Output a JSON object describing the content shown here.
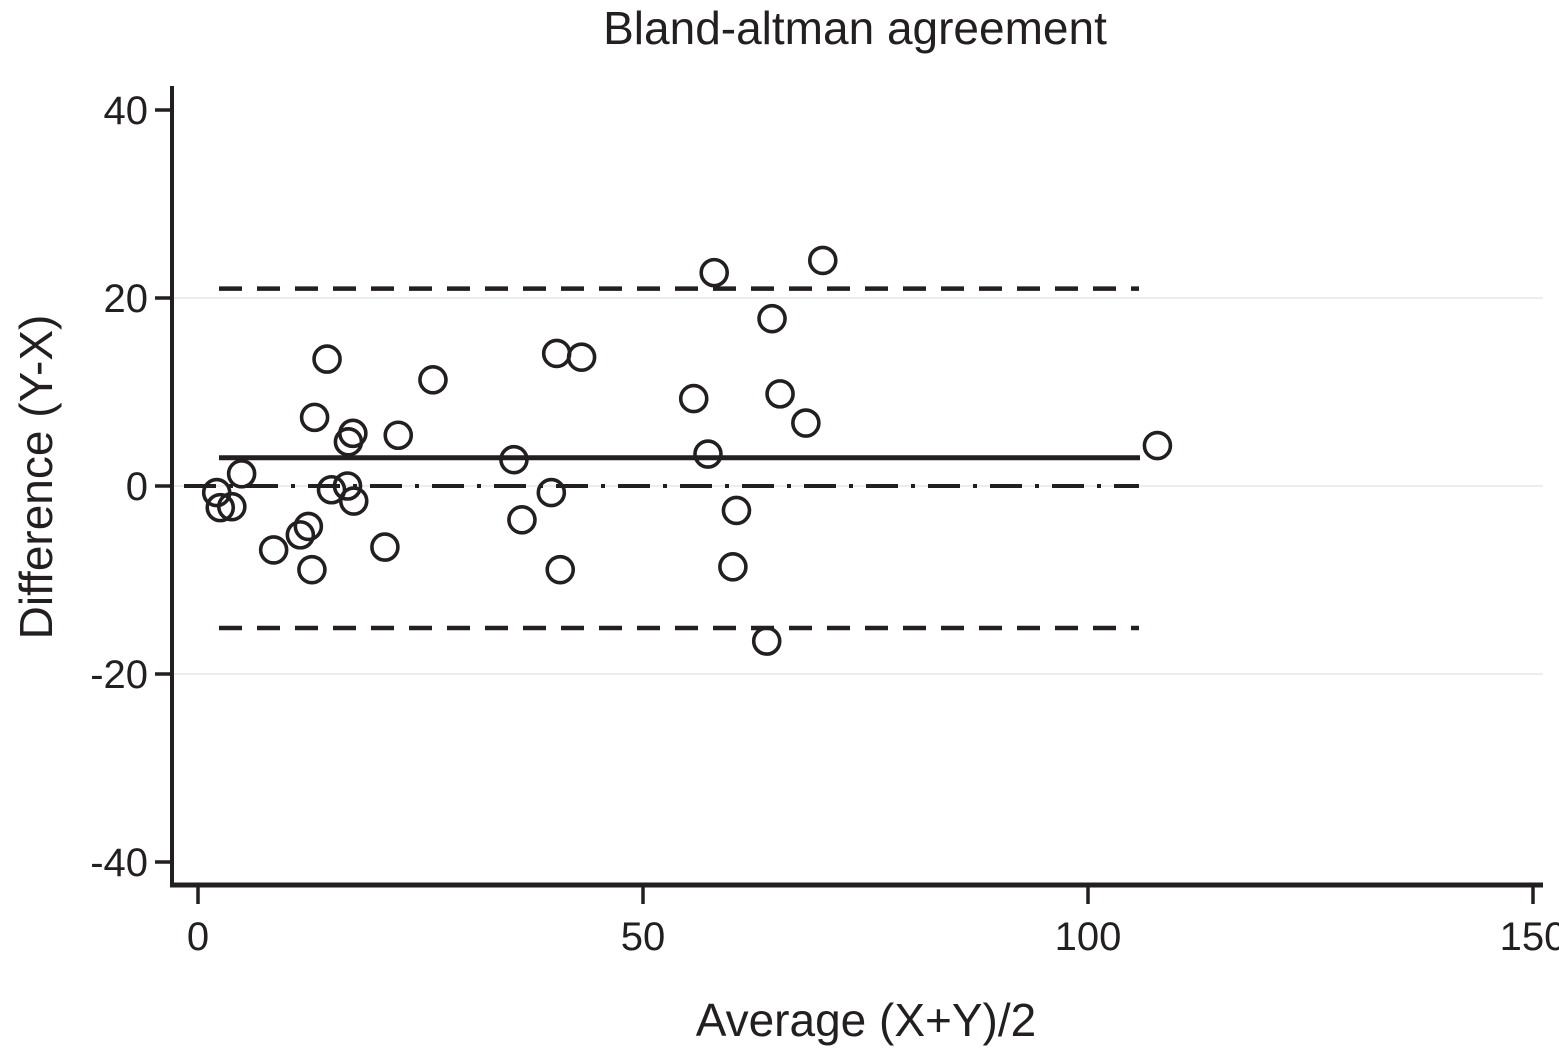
{
  "chart_data": {
    "type": "scatter",
    "title": "Bland-altman agreement",
    "xlabel": "Average (X+Y)/2",
    "ylabel": "Difference (Y-X)",
    "xlim": [
      0,
      150
    ],
    "ylim": [
      -40,
      40
    ],
    "x_ticks": [
      0,
      50,
      100,
      150
    ],
    "y_ticks": [
      40,
      20,
      0,
      -20,
      -40
    ],
    "gridlines_y": [
      20,
      0,
      -20
    ],
    "grid": "horizontal-light",
    "legend": "none",
    "marker": "open-circle",
    "points": [
      [
        2.1,
        -0.7
      ],
      [
        2.5,
        -2.3
      ],
      [
        3.8,
        -2.2
      ],
      [
        4.9,
        1.3
      ],
      [
        8.5,
        -6.8
      ],
      [
        11.5,
        -5.2
      ],
      [
        12.4,
        -4.3
      ],
      [
        12.8,
        -8.9
      ],
      [
        13.1,
        7.3
      ],
      [
        14.5,
        13.5
      ],
      [
        15.0,
        -0.4
      ],
      [
        16.8,
        0.0
      ],
      [
        16.9,
        4.7
      ],
      [
        17.4,
        5.6
      ],
      [
        17.5,
        -1.6
      ],
      [
        21.0,
        -6.5
      ],
      [
        22.5,
        5.4
      ],
      [
        26.4,
        11.3
      ],
      [
        35.5,
        2.8
      ],
      [
        36.4,
        -3.6
      ],
      [
        39.7,
        -0.7
      ],
      [
        40.3,
        14.1
      ],
      [
        40.7,
        -8.9
      ],
      [
        43.1,
        13.7
      ],
      [
        55.7,
        9.3
      ],
      [
        57.3,
        3.4
      ],
      [
        58.0,
        22.7
      ],
      [
        60.1,
        -8.6
      ],
      [
        60.5,
        -2.6
      ],
      [
        63.9,
        -16.5
      ],
      [
        64.5,
        17.8
      ],
      [
        65.4,
        9.8
      ],
      [
        68.3,
        6.7
      ],
      [
        70.2,
        24.0
      ],
      [
        107.8,
        4.3
      ]
    ],
    "reference_lines": {
      "mean_difference": {
        "value": 3.0,
        "style": "solid"
      },
      "zero_line": {
        "value": 0.0,
        "style": "dash-dot"
      },
      "upper_limit_of_agreement": {
        "value": 21.0,
        "style": "dashed"
      },
      "lower_limit_of_agreement": {
        "value": -15.1,
        "style": "dashed"
      }
    },
    "colors": {
      "ink": "#231f20",
      "grid": "#ededed",
      "background": "#ffffff"
    }
  }
}
